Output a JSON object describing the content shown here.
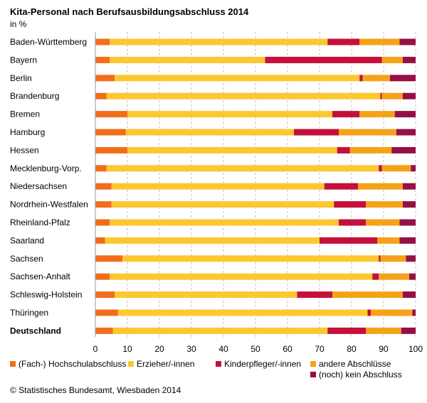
{
  "chart_data": {
    "type": "bar",
    "orientation": "horizontal",
    "stacked": true,
    "title": "Kita-Personal nach Berufsausbildungsabschluss 2014",
    "subtitle": "in %",
    "source": "© Statistisches Bundesamt, Wiesbaden 2014",
    "xlim": [
      0,
      100
    ],
    "xticks": [
      0,
      10,
      20,
      30,
      40,
      50,
      60,
      70,
      80,
      90,
      100
    ],
    "grid": "vertical dashed",
    "legend_position": "bottom",
    "categories": [
      "Baden-Württemberg",
      "Bayern",
      "Berlin",
      "Brandenburg",
      "Bremen",
      "Hamburg",
      "Hessen",
      "Mecklenburg-Vorp.",
      "Niedersachsen",
      "Nordrhein-Westfalen",
      "Rheinland-Pfalz",
      "Saarland",
      "Sachsen",
      "Sachsen-Anhalt",
      "Schleswig-Holstein",
      "Thüringen",
      "Deutschland"
    ],
    "bold_categories": [
      "Deutschland"
    ],
    "series": [
      {
        "name": "(Fach-) Hochschulabschluss",
        "color": "#f26d1b",
        "values": [
          4.5,
          4.5,
          6,
          3.5,
          10,
          9.5,
          10,
          3.5,
          5,
          5,
          4.5,
          3,
          8.5,
          4.5,
          6,
          7,
          5.5
        ]
      },
      {
        "name": "Erzieher/-innen",
        "color": "#fbc82f",
        "values": [
          68,
          48.5,
          76.5,
          85.5,
          64,
          52.5,
          65.5,
          85,
          66.5,
          69.5,
          71.5,
          67,
          80,
          82,
          57,
          78,
          67
        ]
      },
      {
        "name": "Kinderpfleger/-innen",
        "color": "#c4103a",
        "values": [
          10,
          36.5,
          1,
          0.5,
          8.5,
          14,
          4,
          1,
          10.5,
          10,
          8.5,
          18,
          0.5,
          2,
          11,
          1,
          12
        ]
      },
      {
        "name": "andere Abschlüsse",
        "color": "#f5a219",
        "values": [
          12.5,
          6.5,
          8.5,
          6.5,
          11,
          18,
          13,
          9,
          14,
          11.5,
          10.5,
          7,
          8,
          9.5,
          22,
          13,
          11
        ]
      },
      {
        "name": "(noch) kein Abschluss",
        "color": "#960f46",
        "values": [
          5,
          4,
          8,
          4,
          6.5,
          6,
          7.5,
          1.5,
          4,
          4,
          5,
          5,
          3,
          2,
          4,
          1,
          4.5
        ]
      }
    ]
  }
}
